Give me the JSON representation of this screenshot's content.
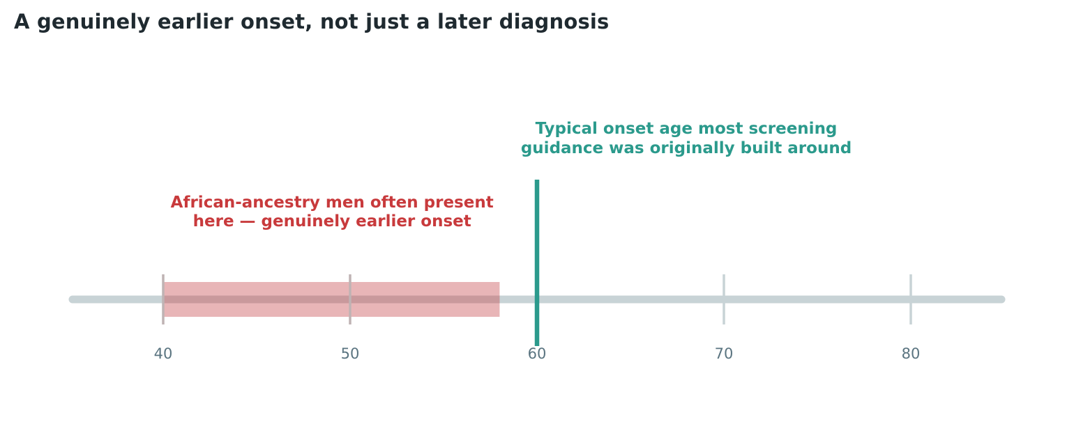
{
  "title": "A genuinely earlier onset, not just a later diagnosis",
  "colors": {
    "title": "#1f2a30",
    "axis_line": "#c8d3d6",
    "tick_mark": "#c8d3d6",
    "tick_label": "#5a7480",
    "range_band": "#e8b5b7",
    "range_band_overlap": "#c9999c",
    "range_text": "#c83a3c",
    "marker": "#2b9a8c",
    "marker_text": "#2b9a8c"
  },
  "chart_data": {
    "type": "timeline",
    "title": "A genuinely earlier onset, not just a later diagnosis",
    "xlabel": "",
    "ylabel": "",
    "xlim": [
      35,
      85
    ],
    "ticks": [
      40,
      50,
      60,
      70,
      80
    ],
    "grid": false,
    "legend": "none",
    "range_band": {
      "start": 40,
      "end": 58,
      "label_lines": [
        "African-ancestry men often present",
        "here — genuinely earlier onset"
      ]
    },
    "marker": {
      "value": 60,
      "label_lines": [
        "Typical onset age most screening",
        "guidance was originally built around"
      ]
    }
  }
}
